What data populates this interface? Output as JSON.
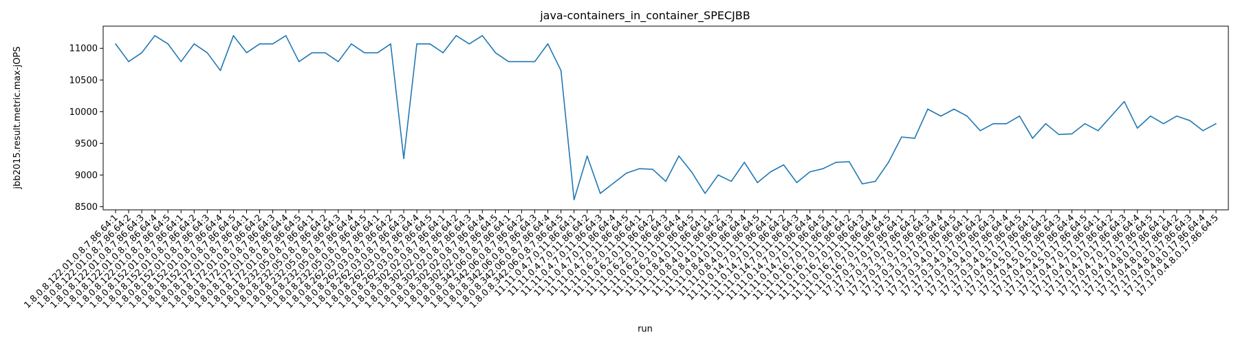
{
  "chart_data": {
    "type": "line",
    "title": "java-containers_in_container_SPECJBB",
    "xlabel": "run",
    "ylabel": "jbb2015.result.metric.max-jOPS",
    "ylim": [
      8450,
      11350
    ],
    "yticks": [
      8500,
      9000,
      9500,
      10000,
      10500,
      11000
    ],
    "grid": false,
    "line_color": "#1f77b4",
    "categories": [
      "1.8.0.8.122.01.0.8.7.86.64:1",
      "1.8.0.8.122.01.0.8.7.86.64:2",
      "1.8.0.8.122.01.0.8.7.86.64:3",
      "1.8.0.8.122.01.0.8.7.86.64:4",
      "1.8.0.8.122.01.0.8.7.86.64:5",
      "1.8.0.8.152.01.0.8.7.86.64:1",
      "1.8.0.8.152.01.0.8.7.86.64:2",
      "1.8.0.8.152.01.0.8.7.86.64:3",
      "1.8.0.8.152.01.0.8.7.86.64:4",
      "1.8.0.8.152.01.0.8.7.86.64:5",
      "1.8.0.8.172.01.0.8.7.86.64:1",
      "1.8.0.8.172.01.0.8.7.86.64:2",
      "1.8.0.8.172.01.0.8.7.86.64:3",
      "1.8.0.8.172.01.0.8.7.86.64:4",
      "1.8.0.8.172.01.0.8.7.86.64:5",
      "1.8.0.8.232.05.0.8.7.86.64:1",
      "1.8.0.8.232.05.0.8.7.86.64:2",
      "1.8.0.8.232.05.0.8.7.86.64:3",
      "1.8.0.8.232.05.0.8.7.86.64:4",
      "1.8.0.8.232.05.0.8.7.86.64:5",
      "1.8.0.8.262.03.0.8.7.86.64:1",
      "1.8.0.8.262.03.0.8.7.86.64:2",
      "1.8.0.8.262.03.0.8.7.86.64:3",
      "1.8.0.8.262.03.0.8.7.86.64:4",
      "1.8.0.8.262.03.0.8.7.86.64:5",
      "1.8.0.8.302.02.0.8.7.86.64:1",
      "1.8.0.8.302.02.0.8.7.86.64:2",
      "1.8.0.8.302.02.0.8.7.86.64:3",
      "1.8.0.8.302.02.0.8.7.86.64:4",
      "1.8.0.8.302.02.0.8.7.86.64:5",
      "1.8.0.8.342.06.0.8.7.86.64:1",
      "1.8.0.8.342.06.0.8.7.86.64:2",
      "1.8.0.8.342.06.0.8.7.86.64:3",
      "1.8.0.8.342.06.0.8.7.86.64:4",
      "1.8.0.8.342.06.0.8.7.86.64:5",
      "11.11.0.4.7.0.11.86.64:1",
      "11.11.0.4.7.0.11.86.64:2",
      "11.11.0.4.7.0.11.86.64:3",
      "11.11.0.4.7.0.11.86.64:4",
      "11.11.0.4.7.0.11.86.64:5",
      "11.11.0.6.2.0.11.86.64:1",
      "11.11.0.6.2.0.11.86.64:2",
      "11.11.0.6.2.0.11.86.64:3",
      "11.11.0.6.2.0.11.86.64:4",
      "11.11.0.6.2.0.11.86.64:5",
      "11.11.0.8.4.0.11.86.64:1",
      "11.11.0.8.4.0.11.86.64:2",
      "11.11.0.8.4.0.11.86.64:3",
      "11.11.0.8.4.0.11.86.64:4",
      "11.11.0.8.4.0.11.86.64:5",
      "11.11.0.14.7.0.11.86.64:1",
      "11.11.0.14.7.0.11.86.64:2",
      "11.11.0.14.7.0.11.86.64:3",
      "11.11.0.14.7.0.11.86.64:4",
      "11.11.0.14.7.0.11.86.64:5",
      "11.11.0.16.7.0.11.86.64:1",
      "11.11.0.16.7.0.11.86.64:2",
      "11.11.0.16.7.0.11.86.64:3",
      "11.11.0.16.7.0.11.86.64:4",
      "11.11.0.16.7.0.11.86.64:5",
      "17.17.0.3.7.0.17.86.64:1",
      "17.17.0.3.7.0.17.86.64:2",
      "17.17.0.3.7.0.17.86.64:3",
      "17.17.0.3.7.0.17.86.64:4",
      "17.17.0.3.7.0.17.86.64:5",
      "17.17.0.3.4.0.17.86.64:1",
      "17.17.0.3.4.0.17.86.64:2",
      "17.17.0.3.4.0.17.86.64:3",
      "17.17.0.3.4.0.17.86.64:4",
      "17.17.0.3.4.0.17.86.64:5",
      "17.17.0.4.5.0.17.86.64:1",
      "17.17.0.4.5.0.17.86.64:2",
      "17.17.0.4.5.0.17.86.64:3",
      "17.17.0.4.5.0.17.86.64:4",
      "17.17.0.4.5.0.17.86.64:5",
      "17.17.0.4.7.0.17.86.64:1",
      "17.17.0.4.7.0.17.86.64:2",
      "17.17.0.4.7.0.17.86.64:3",
      "17.17.0.4.7.0.17.86.64:4",
      "17.17.0.4.7.0.17.86.64:5",
      "17.17.0.4.8.0.17.86.64:1",
      "17.17.0.4.8.0.17.86.64:2",
      "17.17.0.4.8.0.17.86.64:3",
      "17.17.0.4.8.0.17.86.64:4",
      "17.17.0.4.8.0.17.86.64:5"
    ],
    "values": [
      11070,
      10790,
      10930,
      11200,
      11070,
      10790,
      11070,
      10930,
      10650,
      11200,
      10930,
      11070,
      11070,
      11200,
      10790,
      10930,
      10930,
      10790,
      11070,
      10930,
      10930,
      11070,
      9260,
      11070,
      11070,
      10930,
      11200,
      11070,
      11200,
      10930,
      10790,
      10790,
      10790,
      11070,
      10650,
      8610,
      9300,
      8710,
      8870,
      9030,
      9100,
      9090,
      8900,
      9300,
      9040,
      8710,
      9000,
      8900,
      9200,
      8880,
      9050,
      9160,
      8880,
      9050,
      9100,
      9200,
      9210,
      8860,
      8900,
      9200,
      9600,
      9580,
      10040,
      9930,
      10040,
      9930,
      9700,
      9810,
      9810,
      9930,
      9580,
      9810,
      9640,
      9650,
      9810,
      9700,
      9930,
      10160,
      9740,
      9930,
      9810,
      9930,
      9860,
      9700,
      9810
    ]
  }
}
